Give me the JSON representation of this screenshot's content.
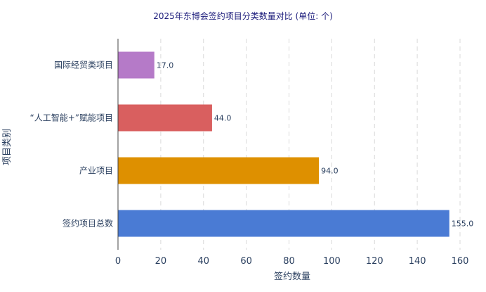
{
  "chart_data": {
    "type": "bar",
    "orientation": "horizontal",
    "title": "2025年东博会签约项目分类数量对比 (单位: 个)",
    "xlabel": "签约数量",
    "ylabel": "项目类别",
    "xlim": [
      0,
      160
    ],
    "xticks": [
      0,
      20,
      40,
      60,
      80,
      100,
      120,
      140,
      160
    ],
    "grid": true,
    "categories": [
      "国际经贸类项目",
      "“人工智能+”赋能项目",
      "产业项目",
      "签约项目总数"
    ],
    "values": [
      17.0,
      44.0,
      94.0,
      155.0
    ],
    "data_labels": [
      "17.0",
      "44.0",
      "94.0",
      "155.0"
    ],
    "colors": [
      "#b57ac8",
      "#d95f5f",
      "#de9000",
      "#4a7bd4"
    ]
  }
}
